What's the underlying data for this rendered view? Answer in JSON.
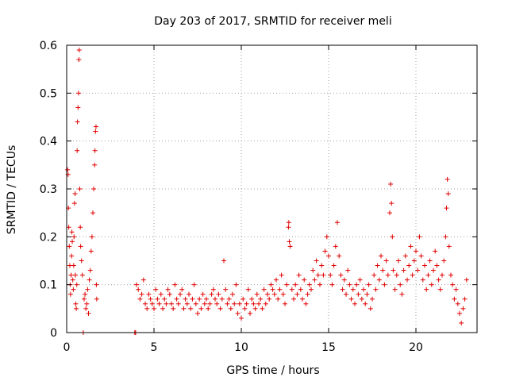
{
  "chart_data": {
    "type": "scatter",
    "title": "Day 203 of 2017, SRMTID for receiver meli",
    "xlabel": "GPS time / hours",
    "ylabel": "SRMTID / TECUs",
    "xlim": [
      0,
      23.5
    ],
    "ylim": [
      0,
      0.6
    ],
    "xticks": [
      0,
      5,
      10,
      15,
      20
    ],
    "yticks": [
      0,
      0.1,
      0.2,
      0.3,
      0.4,
      0.5,
      0.6
    ],
    "grid": true,
    "marker": "plus",
    "color": "#e00000",
    "series": [
      {
        "name": "SRMTID",
        "points": [
          [
            0.05,
            0.34
          ],
          [
            0.08,
            0.33
          ],
          [
            0.1,
            0.26
          ],
          [
            0.12,
            0.22
          ],
          [
            0.15,
            0.18
          ],
          [
            0.18,
            0.14
          ],
          [
            0.2,
            0.1
          ],
          [
            0.22,
            0.08
          ],
          [
            0.25,
            0.12
          ],
          [
            0.28,
            0.16
          ],
          [
            0.3,
            0.21
          ],
          [
            0.32,
            0.19
          ],
          [
            0.35,
            0.11
          ],
          [
            0.38,
            0.09
          ],
          [
            0.4,
            0.14
          ],
          [
            0.42,
            0.2
          ],
          [
            0.45,
            0.27
          ],
          [
            0.48,
            0.29
          ],
          [
            0.5,
            0.12
          ],
          [
            0.52,
            0.06
          ],
          [
            0.55,
            0.05
          ],
          [
            0.58,
            0.1
          ],
          [
            0.6,
            0.38
          ],
          [
            0.62,
            0.44
          ],
          [
            0.65,
            0.47
          ],
          [
            0.68,
            0.5
          ],
          [
            0.7,
            0.57
          ],
          [
            0.72,
            0.59
          ],
          [
            0.75,
            0.3
          ],
          [
            0.78,
            0.22
          ],
          [
            0.8,
            0.18
          ],
          [
            0.85,
            0.15
          ],
          [
            0.9,
            0.12
          ],
          [
            0.95,
            0.0
          ],
          [
            1.0,
            0.07
          ],
          [
            1.05,
            0.08
          ],
          [
            1.1,
            0.05
          ],
          [
            1.15,
            0.06
          ],
          [
            1.2,
            0.09
          ],
          [
            1.25,
            0.04
          ],
          [
            1.3,
            0.11
          ],
          [
            1.35,
            0.13
          ],
          [
            1.4,
            0.17
          ],
          [
            1.45,
            0.2
          ],
          [
            1.5,
            0.25
          ],
          [
            1.55,
            0.3
          ],
          [
            1.6,
            0.35
          ],
          [
            1.62,
            0.38
          ],
          [
            1.65,
            0.42
          ],
          [
            1.68,
            0.43
          ],
          [
            1.7,
            0.1
          ],
          [
            1.72,
            0.07
          ],
          [
            3.9,
            0.0
          ],
          [
            3.95,
            0.0
          ],
          [
            4.0,
            0.1
          ],
          [
            4.1,
            0.09
          ],
          [
            4.2,
            0.07
          ],
          [
            4.3,
            0.08
          ],
          [
            4.4,
            0.11
          ],
          [
            4.5,
            0.06
          ],
          [
            4.6,
            0.05
          ],
          [
            4.7,
            0.08
          ],
          [
            4.8,
            0.07
          ],
          [
            4.9,
            0.06
          ],
          [
            5.0,
            0.05
          ],
          [
            5.1,
            0.09
          ],
          [
            5.2,
            0.07
          ],
          [
            5.3,
            0.06
          ],
          [
            5.4,
            0.08
          ],
          [
            5.5,
            0.05
          ],
          [
            5.6,
            0.07
          ],
          [
            5.7,
            0.06
          ],
          [
            5.8,
            0.09
          ],
          [
            5.9,
            0.08
          ],
          [
            6.0,
            0.06
          ],
          [
            6.1,
            0.05
          ],
          [
            6.2,
            0.1
          ],
          [
            6.3,
            0.07
          ],
          [
            6.4,
            0.06
          ],
          [
            6.5,
            0.08
          ],
          [
            6.6,
            0.09
          ],
          [
            6.7,
            0.05
          ],
          [
            6.8,
            0.07
          ],
          [
            6.9,
            0.06
          ],
          [
            7.0,
            0.08
          ],
          [
            7.1,
            0.05
          ],
          [
            7.2,
            0.07
          ],
          [
            7.3,
            0.1
          ],
          [
            7.4,
            0.06
          ],
          [
            7.5,
            0.04
          ],
          [
            7.6,
            0.07
          ],
          [
            7.7,
            0.05
          ],
          [
            7.8,
            0.08
          ],
          [
            7.9,
            0.06
          ],
          [
            8.0,
            0.07
          ],
          [
            8.1,
            0.05
          ],
          [
            8.2,
            0.06
          ],
          [
            8.3,
            0.08
          ],
          [
            8.4,
            0.09
          ],
          [
            8.5,
            0.07
          ],
          [
            8.6,
            0.06
          ],
          [
            8.7,
            0.08
          ],
          [
            8.8,
            0.05
          ],
          [
            8.9,
            0.07
          ],
          [
            9.0,
            0.15
          ],
          [
            9.1,
            0.09
          ],
          [
            9.2,
            0.06
          ],
          [
            9.3,
            0.07
          ],
          [
            9.4,
            0.05
          ],
          [
            9.5,
            0.08
          ],
          [
            9.6,
            0.06
          ],
          [
            9.7,
            0.1
          ],
          [
            9.8,
            0.04
          ],
          [
            9.9,
            0.06
          ],
          [
            10.0,
            0.03
          ],
          [
            10.1,
            0.07
          ],
          [
            10.2,
            0.05
          ],
          [
            10.3,
            0.06
          ],
          [
            10.4,
            0.09
          ],
          [
            10.5,
            0.04
          ],
          [
            10.6,
            0.07
          ],
          [
            10.7,
            0.06
          ],
          [
            10.8,
            0.05
          ],
          [
            10.9,
            0.08
          ],
          [
            11.0,
            0.06
          ],
          [
            11.1,
            0.07
          ],
          [
            11.2,
            0.05
          ],
          [
            11.3,
            0.09
          ],
          [
            11.4,
            0.06
          ],
          [
            11.5,
            0.08
          ],
          [
            11.6,
            0.07
          ],
          [
            11.7,
            0.1
          ],
          [
            11.8,
            0.09
          ],
          [
            11.9,
            0.08
          ],
          [
            12.0,
            0.11
          ],
          [
            12.1,
            0.07
          ],
          [
            12.2,
            0.09
          ],
          [
            12.3,
            0.12
          ],
          [
            12.4,
            0.08
          ],
          [
            12.5,
            0.06
          ],
          [
            12.6,
            0.1
          ],
          [
            12.7,
            0.22
          ],
          [
            12.72,
            0.23
          ],
          [
            12.75,
            0.19
          ],
          [
            12.8,
            0.18
          ],
          [
            12.9,
            0.09
          ],
          [
            13.0,
            0.07
          ],
          [
            13.1,
            0.1
          ],
          [
            13.2,
            0.08
          ],
          [
            13.3,
            0.12
          ],
          [
            13.4,
            0.09
          ],
          [
            13.5,
            0.07
          ],
          [
            13.6,
            0.11
          ],
          [
            13.7,
            0.06
          ],
          [
            13.8,
            0.08
          ],
          [
            13.9,
            0.1
          ],
          [
            14.0,
            0.09
          ],
          [
            14.1,
            0.13
          ],
          [
            14.2,
            0.11
          ],
          [
            14.3,
            0.15
          ],
          [
            14.4,
            0.12
          ],
          [
            14.5,
            0.1
          ],
          [
            14.6,
            0.14
          ],
          [
            14.7,
            0.12
          ],
          [
            14.8,
            0.17
          ],
          [
            14.9,
            0.2
          ],
          [
            15.0,
            0.16
          ],
          [
            15.1,
            0.12
          ],
          [
            15.2,
            0.1
          ],
          [
            15.3,
            0.14
          ],
          [
            15.4,
            0.18
          ],
          [
            15.5,
            0.23
          ],
          [
            15.6,
            0.16
          ],
          [
            15.7,
            0.12
          ],
          [
            15.8,
            0.09
          ],
          [
            15.9,
            0.11
          ],
          [
            16.0,
            0.08
          ],
          [
            16.1,
            0.13
          ],
          [
            16.2,
            0.1
          ],
          [
            16.3,
            0.07
          ],
          [
            16.4,
            0.09
          ],
          [
            16.5,
            0.06
          ],
          [
            16.6,
            0.1
          ],
          [
            16.7,
            0.08
          ],
          [
            16.8,
            0.11
          ],
          [
            16.9,
            0.07
          ],
          [
            17.0,
            0.09
          ],
          [
            17.1,
            0.06
          ],
          [
            17.2,
            0.08
          ],
          [
            17.3,
            0.1
          ],
          [
            17.4,
            0.05
          ],
          [
            17.5,
            0.07
          ],
          [
            17.6,
            0.12
          ],
          [
            17.7,
            0.09
          ],
          [
            17.8,
            0.14
          ],
          [
            17.9,
            0.11
          ],
          [
            18.0,
            0.16
          ],
          [
            18.1,
            0.13
          ],
          [
            18.2,
            0.1
          ],
          [
            18.3,
            0.15
          ],
          [
            18.4,
            0.12
          ],
          [
            18.5,
            0.25
          ],
          [
            18.55,
            0.31
          ],
          [
            18.6,
            0.27
          ],
          [
            18.65,
            0.2
          ],
          [
            18.7,
            0.13
          ],
          [
            18.8,
            0.09
          ],
          [
            18.9,
            0.12
          ],
          [
            19.0,
            0.15
          ],
          [
            19.1,
            0.1
          ],
          [
            19.2,
            0.08
          ],
          [
            19.3,
            0.13
          ],
          [
            19.4,
            0.16
          ],
          [
            19.5,
            0.11
          ],
          [
            19.6,
            0.14
          ],
          [
            19.7,
            0.18
          ],
          [
            19.8,
            0.12
          ],
          [
            19.9,
            0.15
          ],
          [
            20.0,
            0.17
          ],
          [
            20.1,
            0.13
          ],
          [
            20.2,
            0.2
          ],
          [
            20.3,
            0.16
          ],
          [
            20.4,
            0.11
          ],
          [
            20.5,
            0.14
          ],
          [
            20.6,
            0.09
          ],
          [
            20.7,
            0.12
          ],
          [
            20.8,
            0.15
          ],
          [
            20.9,
            0.1
          ],
          [
            21.0,
            0.13
          ],
          [
            21.1,
            0.17
          ],
          [
            21.2,
            0.14
          ],
          [
            21.3,
            0.11
          ],
          [
            21.4,
            0.09
          ],
          [
            21.5,
            0.12
          ],
          [
            21.6,
            0.15
          ],
          [
            21.7,
            0.2
          ],
          [
            21.75,
            0.26
          ],
          [
            21.8,
            0.32
          ],
          [
            21.85,
            0.29
          ],
          [
            21.9,
            0.18
          ],
          [
            22.0,
            0.12
          ],
          [
            22.1,
            0.1
          ],
          [
            22.2,
            0.07
          ],
          [
            22.3,
            0.09
          ],
          [
            22.4,
            0.06
          ],
          [
            22.5,
            0.04
          ],
          [
            22.6,
            0.02
          ],
          [
            22.7,
            0.05
          ],
          [
            22.8,
            0.07
          ],
          [
            22.9,
            0.11
          ]
        ]
      }
    ]
  }
}
